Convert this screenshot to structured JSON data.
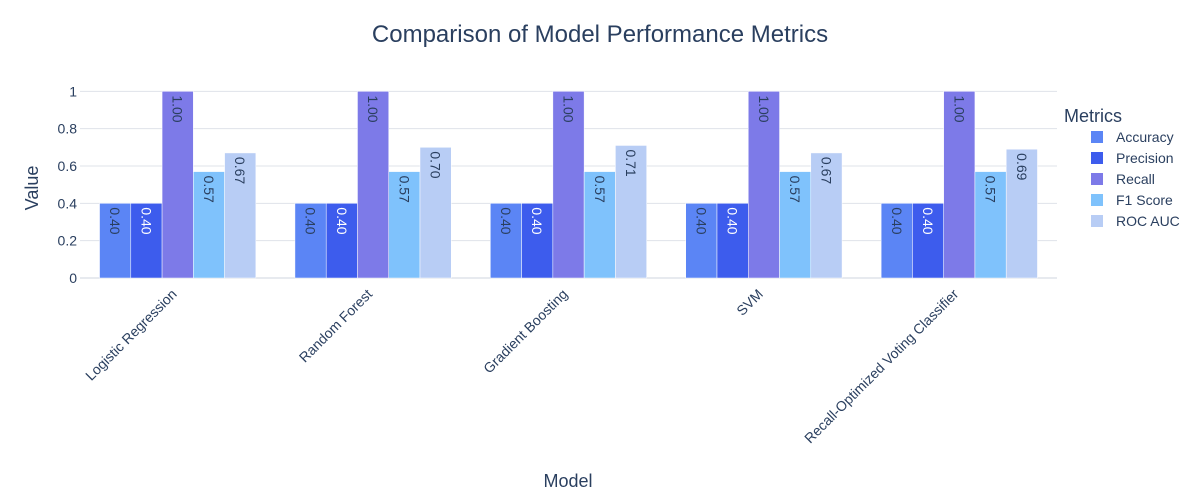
{
  "chart_data": {
    "type": "bar",
    "title": "Comparison of Model Performance Metrics",
    "xlabel": "Model",
    "ylabel": "Value",
    "ylim": [
      0,
      1.05
    ],
    "yticks": [
      0,
      0.2,
      0.4,
      0.6,
      0.8,
      1
    ],
    "ytick_labels": [
      "0",
      "0.2",
      "0.4",
      "0.6",
      "0.8",
      "1"
    ],
    "grid": true,
    "legend_title": "Metrics",
    "legend_position": "right",
    "categories": [
      "Logistic Regression",
      "Random Forest",
      "Gradient Boosting",
      "SVM",
      "Recall-Optimized Voting Classifier"
    ],
    "series": [
      {
        "name": "Accuracy",
        "color": "#5b85f5",
        "label_color": "#2a3f5f",
        "values": [
          0.4,
          0.4,
          0.4,
          0.4,
          0.4
        ],
        "labels": [
          "0.40",
          "0.40",
          "0.40",
          "0.40",
          "0.40"
        ]
      },
      {
        "name": "Precision",
        "color": "#3d5ced",
        "label_color": "#ffffff",
        "values": [
          0.4,
          0.4,
          0.4,
          0.4,
          0.4
        ],
        "labels": [
          "0.40",
          "0.40",
          "0.40",
          "0.40",
          "0.40"
        ]
      },
      {
        "name": "Recall",
        "color": "#7d7ae8",
        "label_color": "#2a3f5f",
        "values": [
          1.0,
          1.0,
          1.0,
          1.0,
          1.0
        ],
        "labels": [
          "1.00",
          "1.00",
          "1.00",
          "1.00",
          "1.00"
        ]
      },
      {
        "name": "F1 Score",
        "color": "#7fc2fc",
        "label_color": "#2a3f5f",
        "values": [
          0.57,
          0.57,
          0.57,
          0.57,
          0.57
        ],
        "labels": [
          "0.57",
          "0.57",
          "0.57",
          "0.57",
          "0.57"
        ]
      },
      {
        "name": "ROC AUC",
        "color": "#b8cdf5",
        "label_color": "#2a3f5f",
        "values": [
          0.67,
          0.7,
          0.71,
          0.67,
          0.69
        ],
        "labels": [
          "0.67",
          "0.70",
          "0.71",
          "0.67",
          "0.69"
        ]
      }
    ]
  }
}
